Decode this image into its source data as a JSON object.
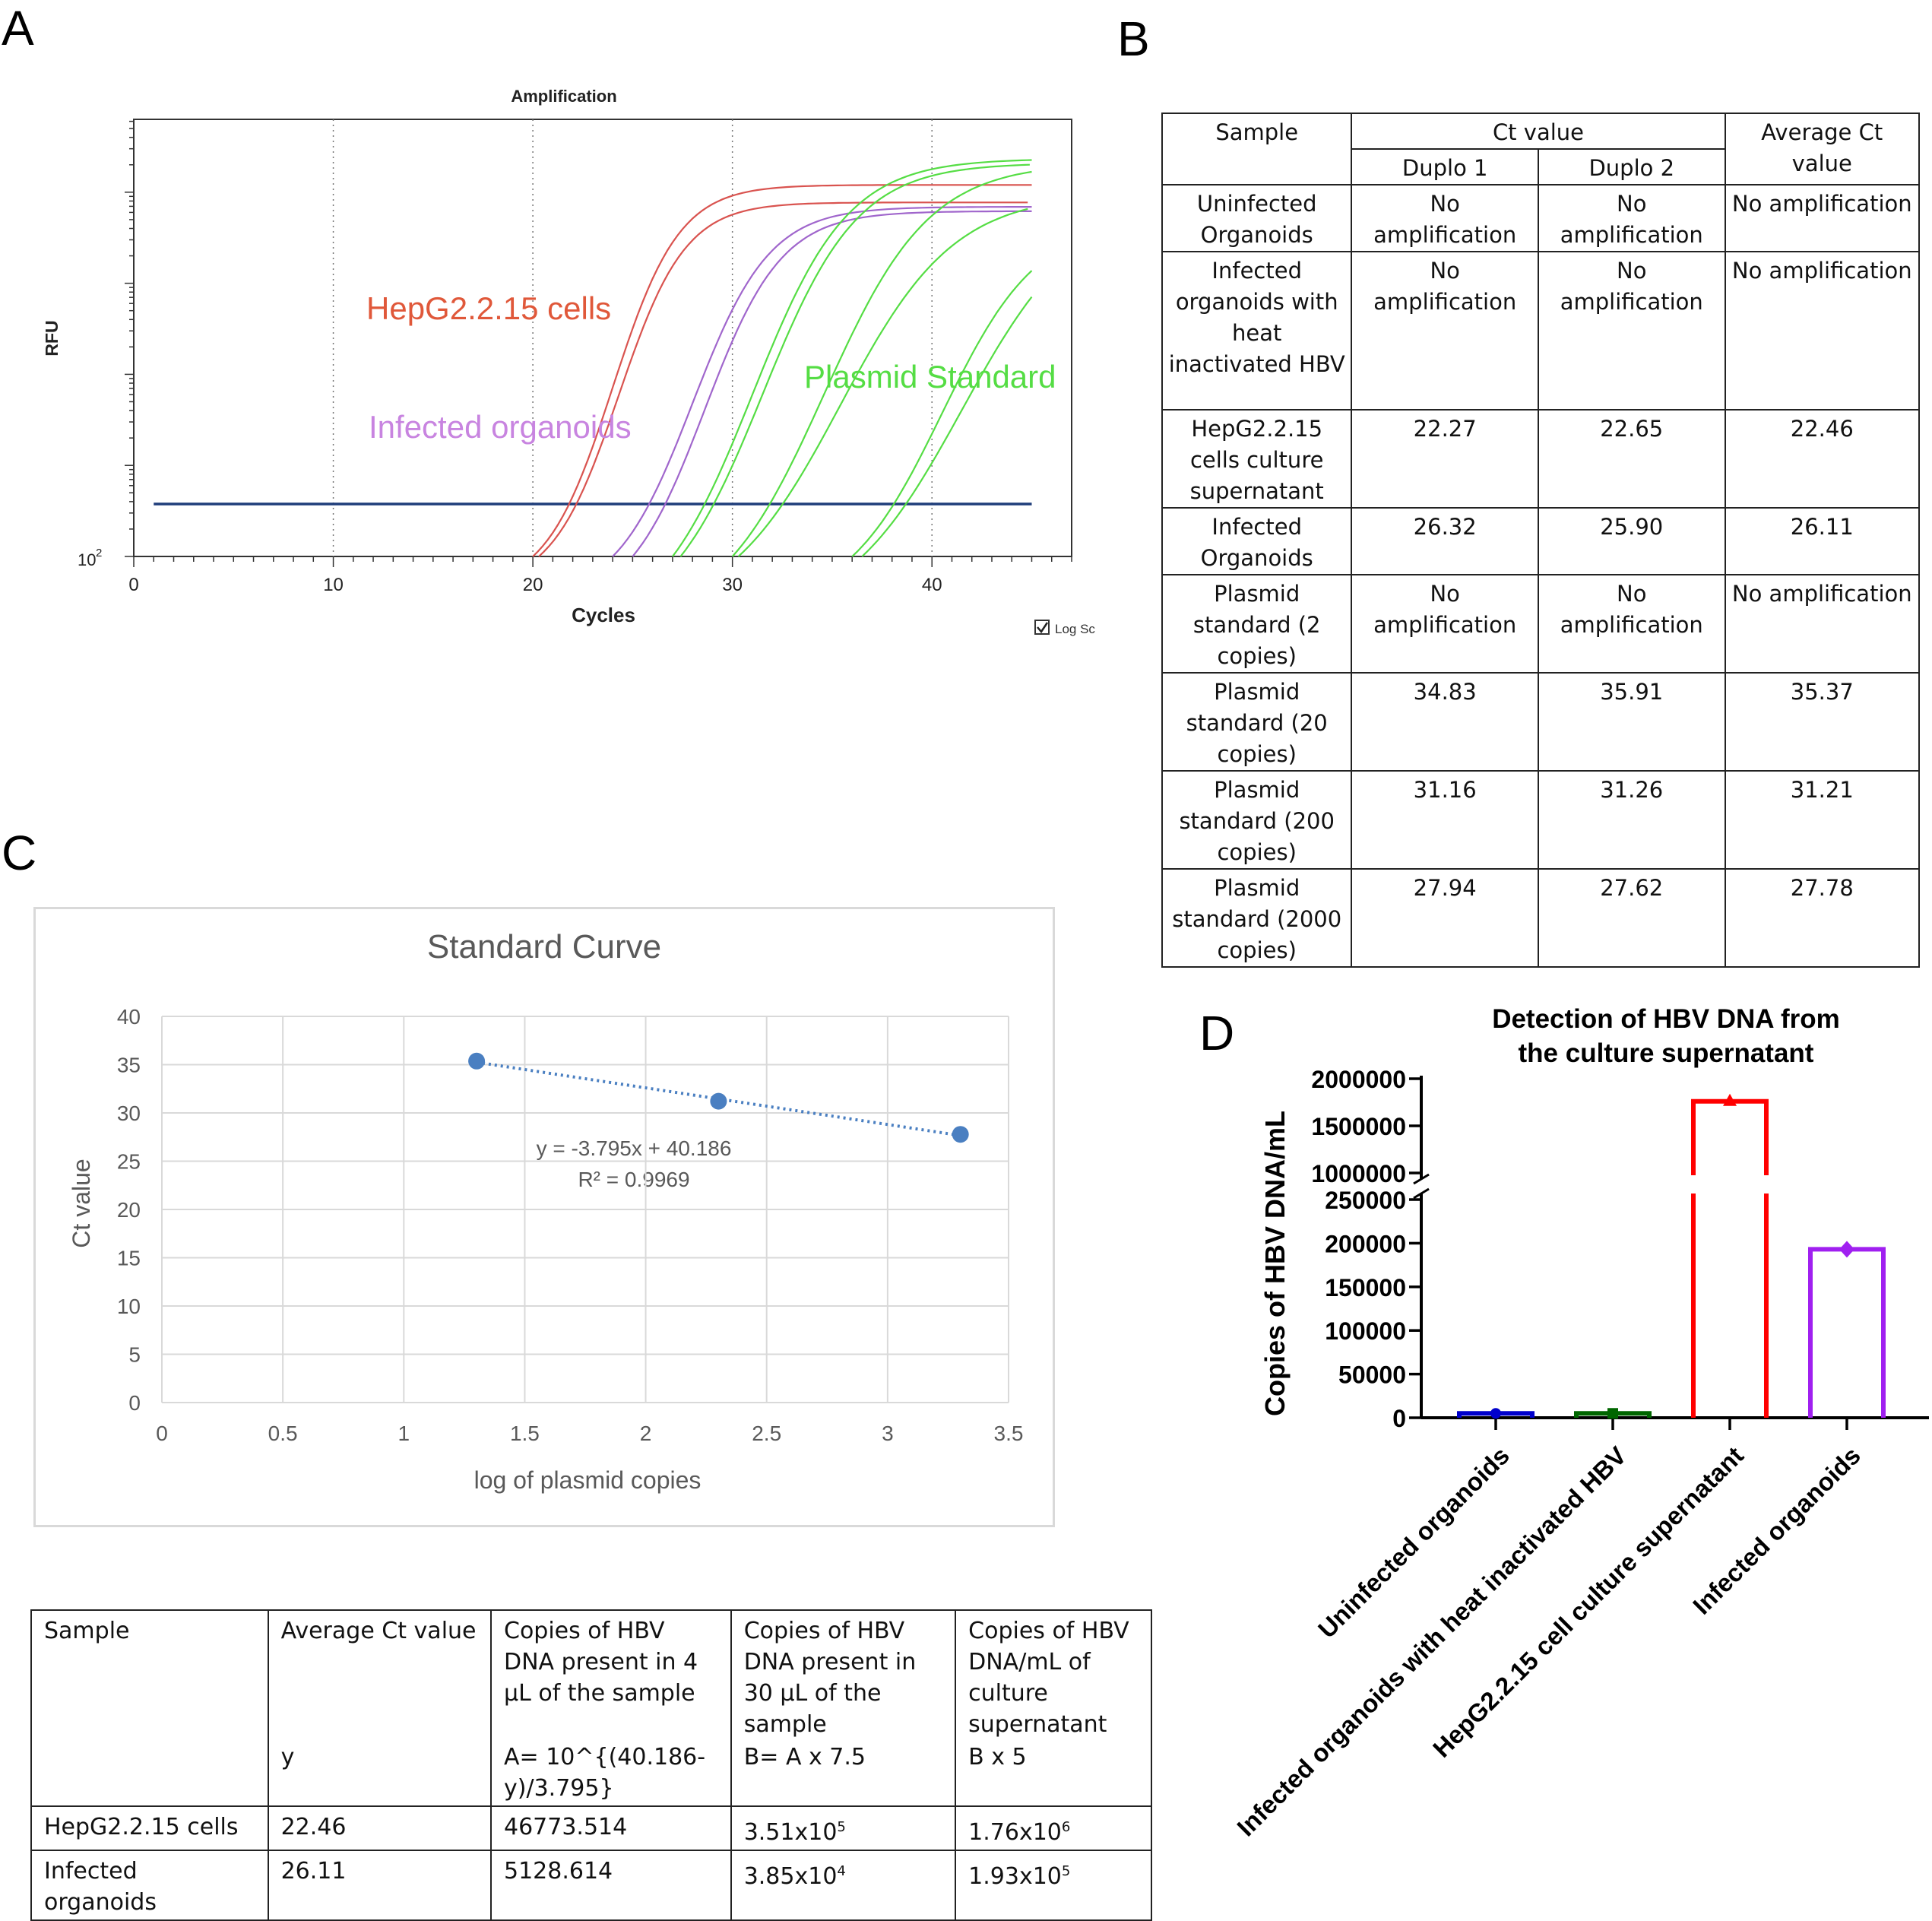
{
  "panel_labels": {
    "a": "A",
    "b": "B",
    "c": "C",
    "d": "D"
  },
  "colors": {
    "hepg2": "#d9534f",
    "organoid": "#a066cc",
    "plasmid": "#55dd44",
    "threshold": "#1f3d7a",
    "standard_points": "#4a7fc1",
    "bar_uninfected": "#0000cc",
    "bar_heat": "#006600",
    "bar_hepg2": "#ff0000",
    "bar_organoid": "#a020f0"
  },
  "panel_a": {
    "title": "Amplification",
    "ylabel": "RFU",
    "xlabel": "Cycles",
    "y_tick_base": "10",
    "y_tick_exp": "2",
    "checkbox_label": "Log Sc",
    "annotations": {
      "hepg2": "HepG2.2.15 cells",
      "organoids": "Infected organoids",
      "plasmid": "Plasmid Standard"
    }
  },
  "table_b": {
    "headers": {
      "sample": "Sample",
      "ct_value": "Ct value",
      "duplo1": "Duplo 1",
      "duplo2": "Duplo 2",
      "average": "Average Ct value"
    },
    "rows": [
      {
        "sample": "Uninfected Organoids",
        "d1": "No amplification",
        "d2": "No amplification",
        "avg": "No amplification"
      },
      {
        "sample": "Infected organoids with heat inactivated HBV",
        "d1": "No amplification",
        "d2": "No amplification",
        "avg": "No amplification"
      },
      {
        "sample": "HepG2.2.15 cells culture supernatant",
        "d1": "22.27",
        "d2": "22.65",
        "avg": "22.46"
      },
      {
        "sample": "Infected Organoids",
        "d1": "26.32",
        "d2": "25.90",
        "avg": "26.11"
      },
      {
        "sample": "Plasmid standard (2 copies)",
        "d1": "No amplification",
        "d2": "No amplification",
        "avg": "No amplification"
      },
      {
        "sample": "Plasmid standard (20 copies)",
        "d1": "34.83",
        "d2": "35.91",
        "avg": "35.37"
      },
      {
        "sample": "Plasmid standard (200 copies)",
        "d1": "31.16",
        "d2": "31.26",
        "avg": "31.21"
      },
      {
        "sample": "Plasmid standard (2000 copies)",
        "d1": "27.94",
        "d2": "27.62",
        "avg": "27.78"
      }
    ]
  },
  "table_c": {
    "headers": [
      {
        "line1": "Sample",
        "line2": ""
      },
      {
        "line1": "Average Ct value",
        "line2": "y"
      },
      {
        "line1": "Copies of HBV DNA present in 4 µL of the sample",
        "line2": "A= 10^{(40.186-y)/3.795}"
      },
      {
        "line1": "Copies of HBV DNA present in 30 µL of the sample",
        "line2": "B= A x 7.5"
      },
      {
        "line1": "Copies of HBV DNA/mL of culture supernatant",
        "line2": "B x 5"
      }
    ],
    "rows": [
      {
        "sample": "HepG2.2.15 cells",
        "ct": "22.46",
        "a": "46773.514",
        "b_base": "3.51x10",
        "b_exp": "5",
        "c_base": "1.76x10",
        "c_exp": "6"
      },
      {
        "sample": "Infected organoids",
        "ct": "26.11",
        "a": "5128.614",
        "b_base": "3.85x10",
        "b_exp": "4",
        "c_base": "1.93x10",
        "c_exp": "5"
      }
    ]
  },
  "chart_data": [
    {
      "panel": "A",
      "type": "line",
      "title": "Amplification",
      "xlabel": "Cycles",
      "ylabel": "RFU",
      "xlim": [
        0,
        47
      ],
      "x_ticks": [
        0,
        10,
        20,
        30,
        40
      ],
      "y_scale": "log",
      "grid": "vertical dotted at 10, 20, 30, 40",
      "threshold_fraction": 0.12,
      "series": [
        {
          "group": "hepg2",
          "midpoint": 24.0,
          "slope": 0.6,
          "plateau": 0.85,
          "start": 20
        },
        {
          "group": "hepg2",
          "midpoint": 24.3,
          "slope": 0.6,
          "plateau": 0.81,
          "start": 20.3
        },
        {
          "group": "organoid",
          "midpoint": 28.0,
          "slope": 0.52,
          "plateau": 0.8,
          "start": 24
        },
        {
          "group": "organoid",
          "midpoint": 28.6,
          "slope": 0.52,
          "plateau": 0.79,
          "start": 25
        },
        {
          "group": "plasmid",
          "midpoint": 31.0,
          "slope": 0.42,
          "plateau": 0.91,
          "start": 27
        },
        {
          "group": "plasmid",
          "midpoint": 31.5,
          "slope": 0.42,
          "plateau": 0.9,
          "start": 27.4
        },
        {
          "group": "plasmid",
          "midpoint": 34.6,
          "slope": 0.38,
          "plateau": 0.9,
          "start": 30
        },
        {
          "group": "plasmid",
          "midpoint": 35.4,
          "slope": 0.35,
          "plateau": 0.83,
          "start": 30.3
        },
        {
          "group": "plasmid",
          "midpoint": 40.5,
          "slope": 0.42,
          "plateau": 0.77,
          "start": 36
        },
        {
          "group": "plasmid",
          "midpoint": 41.5,
          "slope": 0.34,
          "plateau": 0.82,
          "start": 36.5
        }
      ]
    },
    {
      "panel": "C",
      "type": "scatter",
      "title": "Standard Curve",
      "xlabel": "log of plasmid copies",
      "ylabel": "Ct value",
      "xlim": [
        0,
        3.5
      ],
      "ylim": [
        0,
        40
      ],
      "x_ticks": [
        0,
        0.5,
        1,
        1.5,
        2,
        2.5,
        3,
        3.5
      ],
      "y_ticks": [
        0,
        5,
        10,
        15,
        20,
        25,
        30,
        35,
        40
      ],
      "grid": true,
      "points": [
        {
          "x": 1.30103,
          "y": 35.37
        },
        {
          "x": 2.30103,
          "y": 31.21
        },
        {
          "x": 3.30103,
          "y": 27.78
        }
      ],
      "trendline": {
        "slope": -3.795,
        "intercept": 40.186
      },
      "equation": "y = -3.795x + 40.186",
      "r2_label": "R² = 0.9969"
    },
    {
      "panel": "D",
      "type": "bar",
      "title_line1": "Detection of HBV DNA from",
      "title_line2": "the culture supernatant",
      "ylabel": "Copies of HBV DNA/mL",
      "y_axis_break": true,
      "lower_segment": {
        "ylim": [
          0,
          250000
        ],
        "ticks": [
          0,
          50000,
          100000,
          150000,
          200000,
          250000
        ]
      },
      "upper_segment": {
        "ylim": [
          1000000,
          2000000
        ],
        "ticks": [
          1000000,
          1500000,
          2000000
        ]
      },
      "categories": [
        "Uninfected organoids",
        "Infected organoids with heat inactivated HBV",
        "HepG2.2.15 cell culture supernatant",
        "Infected organoids"
      ],
      "values": [
        5000,
        5000,
        1760000,
        193000
      ]
    }
  ]
}
